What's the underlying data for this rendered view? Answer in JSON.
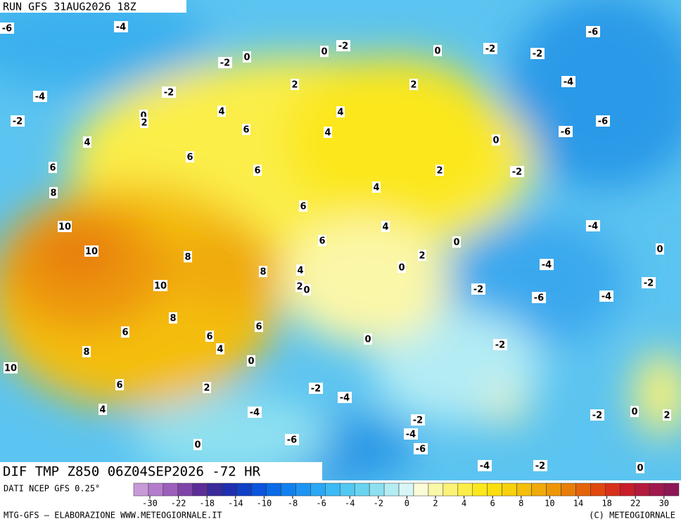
{
  "header": {
    "run": "RUN GFS 31AUG2026 18Z"
  },
  "footer": {
    "title": "DIF TMP Z850 06Z04SEP2026 -72 HR",
    "source": "DATI NCEP GFS 0.25°",
    "credit": "MTG-GFS — ELABORAZIONE WWW.METEOGIORNALE.IT",
    "copyright": "(C) METEOGIORNALE"
  },
  "colorbar": {
    "ticks": [
      -30,
      -22,
      -18,
      -14,
      -10,
      -8,
      -6,
      -4,
      -2,
      0,
      2,
      4,
      6,
      8,
      10,
      14,
      18,
      22,
      30
    ],
    "colors": [
      "#c89ad8",
      "#b47ccc",
      "#9c5fbc",
      "#7e44a8",
      "#5c2c98",
      "#3a2a9a",
      "#1e2fb0",
      "#1040c8",
      "#0a55dc",
      "#0a6ae8",
      "#1280ee",
      "#1e95f2",
      "#2aa8f4",
      "#3cbaf4",
      "#52c8f2",
      "#6ad4f0",
      "#8ee0f0",
      "#b4ecf4",
      "#d8f6f8",
      "#fbfbd8",
      "#fbf7a8",
      "#fbf276",
      "#fbee48",
      "#fbe71e",
      "#fbde10",
      "#f8d00c",
      "#f4be0a",
      "#f0aa08",
      "#ec9608",
      "#e87e0a",
      "#e4640c",
      "#e0480e",
      "#d8301a",
      "#c81e2a",
      "#b41a3c",
      "#a0184c",
      "#8c1656"
    ]
  },
  "contour_labels": [
    "-6",
    "-4",
    "-2",
    "0",
    "0",
    "-2",
    "-2",
    "-6",
    "-2",
    "0",
    "-4",
    "-2",
    "2",
    "2",
    "-4",
    "0",
    "2",
    "-2",
    "4",
    "4",
    "6",
    "4",
    "-6",
    "-6",
    "4",
    "0",
    "6",
    "6",
    "6",
    "2",
    "-2",
    "4",
    "8",
    "6",
    "10",
    "4",
    "-4",
    "6",
    "0",
    "0",
    "10",
    "8",
    "2",
    "0",
    "-4",
    "8",
    "4",
    "10",
    "2",
    "0",
    "-2",
    "-2",
    "-6",
    "-4",
    "8",
    "6",
    "6",
    "6",
    "0",
    "4",
    "-2",
    "8",
    "0",
    "10",
    "6",
    "2",
    "-2",
    "-4",
    "4",
    "-4",
    "-2",
    "0",
    "-2",
    "2",
    "-4",
    "-6",
    "-6",
    "0",
    "-4",
    "-2",
    "0"
  ]
}
